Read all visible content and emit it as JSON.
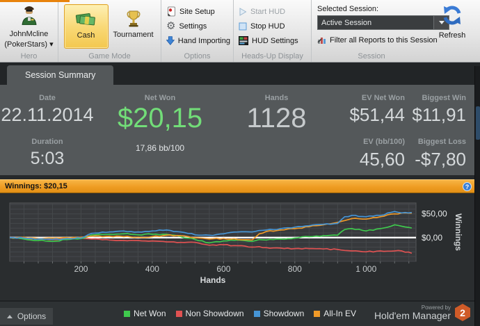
{
  "ribbon": {
    "hero": {
      "name": "JohnMcline",
      "site": "(PokerStars) ▾",
      "caption": "Hero"
    },
    "game_mode": {
      "cash": "Cash",
      "tournament": "Tournament",
      "caption": "Game Mode"
    },
    "options": {
      "site_setup": "Site Setup",
      "settings": "Settings",
      "hand_importing": "Hand Importing",
      "caption": "Options"
    },
    "hud": {
      "start": "Start HUD",
      "stop": "Stop HUD",
      "settings": "HUD Settings",
      "caption": "Heads-Up Display"
    },
    "session": {
      "selected_label": "Selected Session:",
      "selected_value": "Active Session",
      "filter": "Filter all Reports to this Session",
      "refresh": "Refresh",
      "caption": "Session"
    }
  },
  "tabs": {
    "session_summary": "Session Summary"
  },
  "stats": {
    "date": {
      "label": "Date",
      "value": "22.11.2014"
    },
    "duration": {
      "label": "Duration",
      "value": "5:03"
    },
    "net_won": {
      "label": "Net Won",
      "value": "$20,15",
      "sub": "17,86 bb/100"
    },
    "hands": {
      "label": "Hands",
      "value": "1128"
    },
    "ev_net_won": {
      "label": "EV Net Won",
      "value": "$51,44"
    },
    "ev_bb100": {
      "label": "EV (bb/100)",
      "value": "45,60"
    },
    "biggest_win": {
      "label": "Biggest Win",
      "value": "$11,91"
    },
    "biggest_loss": {
      "label": "Biggest Loss",
      "value": "-$7,80"
    }
  },
  "winnings_bar": {
    "label": "Winnings: $20,15",
    "help": "?"
  },
  "chart_data": {
    "type": "line",
    "xlabel": "Hands",
    "ylabel": "Winnings",
    "xlim": [
      0,
      1140
    ],
    "ylim": [
      -50,
      73
    ],
    "grid": true,
    "zero_line": 0,
    "x_ticks": [
      200,
      400,
      600,
      800,
      1000
    ],
    "x_tick_labels": [
      "200",
      "400",
      "600",
      "800",
      "1 000"
    ],
    "y_tick_labels": [
      {
        "value": 50,
        "label": "$50,00"
      },
      {
        "value": 0,
        "label": "$0,00"
      }
    ],
    "x": [
      0,
      40,
      80,
      120,
      160,
      200,
      230,
      280,
      320,
      360,
      400,
      440,
      480,
      520,
      560,
      600,
      640,
      680,
      700,
      720,
      760,
      800,
      840,
      880,
      920,
      940,
      960,
      1000,
      1040,
      1080,
      1100,
      1128
    ],
    "series": [
      {
        "name": "Net Won",
        "color": "#3fc94d",
        "values": [
          0,
          -3,
          -6,
          -8,
          -4,
          -2,
          6,
          7,
          8,
          6,
          7,
          7,
          2,
          -4,
          -11,
          -7,
          -5,
          -8,
          -4,
          -5,
          -3,
          -1,
          2,
          4,
          5,
          17,
          19,
          14,
          19,
          27,
          24,
          20.15
        ]
      },
      {
        "name": "Non Showdown",
        "color": "#e05252",
        "values": [
          0,
          -2,
          -3,
          -4,
          -2,
          -1,
          -3,
          -5,
          -6,
          -6,
          -7,
          -9,
          -10,
          -10,
          -16,
          -15,
          -17,
          -20,
          -19,
          -21,
          -22,
          -23,
          -23,
          -24,
          -25,
          -27,
          -28,
          -30,
          -28,
          -28,
          -28,
          -32.85
        ]
      },
      {
        "name": "Showdown",
        "color": "#4695d6",
        "values": [
          0,
          -1,
          -3,
          -4,
          -2,
          -1,
          9,
          12,
          14,
          12,
          14,
          16,
          12,
          6,
          5,
          8,
          12,
          12,
          15,
          16,
          19,
          22,
          25,
          28,
          30,
          44,
          47,
          44,
          47,
          55,
          52,
          53
        ]
      },
      {
        "name": "All-In EV",
        "color": "#f09a28",
        "values": [
          0,
          1,
          -2,
          -1,
          0,
          1,
          3,
          3,
          2,
          1,
          2,
          5,
          4,
          0,
          -3,
          -2,
          -4,
          -5,
          8,
          13,
          16,
          19,
          23,
          27,
          32,
          36,
          40,
          39,
          44,
          50,
          52,
          51.44
        ]
      }
    ]
  },
  "bottom": {
    "options_label": "Options",
    "legend": [
      {
        "label": "Net Won",
        "color": "#3fc94d"
      },
      {
        "label": "Non Showdown",
        "color": "#e05252"
      },
      {
        "label": "Showdown",
        "color": "#4695d6"
      },
      {
        "label": "All-In EV",
        "color": "#f09a28"
      }
    ],
    "powered_by": "Powered by",
    "brand": "Hold'em Manager",
    "brand_badge": "2"
  }
}
